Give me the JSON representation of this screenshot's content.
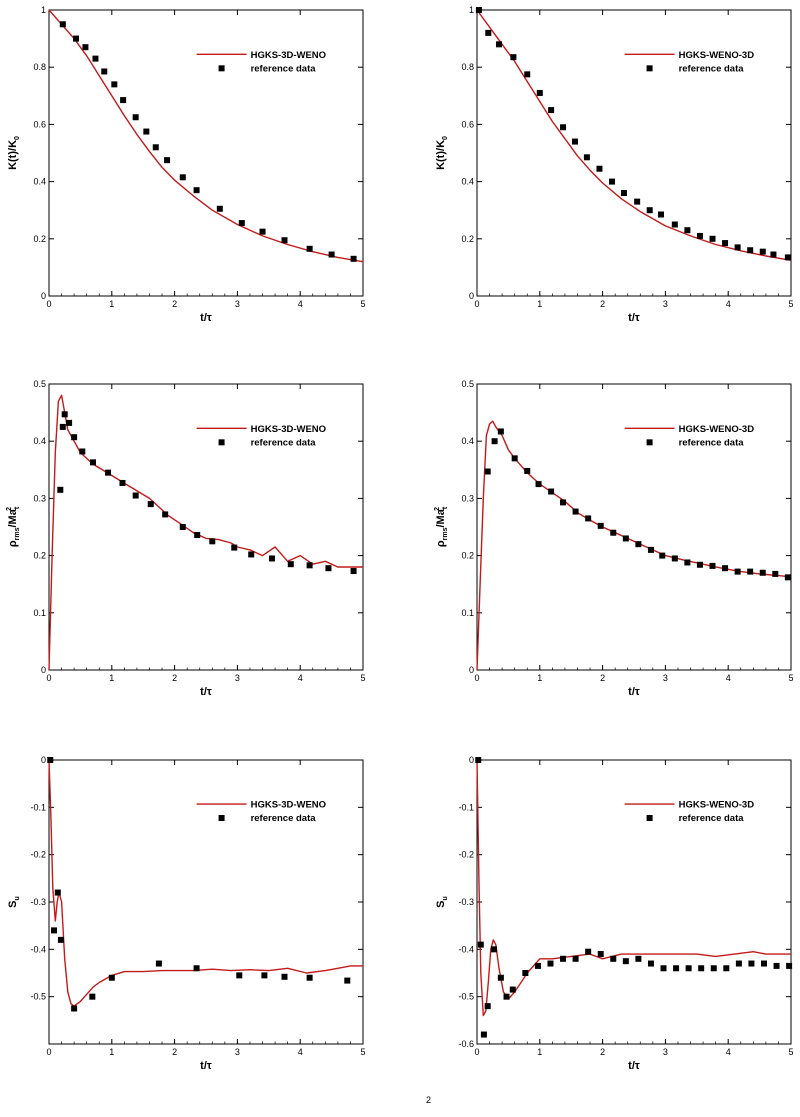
{
  "colors": {
    "simulation": "#c41a1a",
    "reference": "#000000"
  },
  "chart_data": [
    {
      "type": "line",
      "xlabel": "t/τ",
      "ylabel": {
        "main": "K(t)/K",
        "sub": "0",
        "suffix": ""
      },
      "xlim": [
        0,
        5
      ],
      "ylim": [
        0,
        1
      ],
      "xticks": [
        0,
        1,
        2,
        3,
        4,
        5
      ],
      "yticks": [
        0,
        0.2,
        0.4,
        0.6,
        0.8,
        1
      ],
      "ytick_labels": [
        "0",
        "0.2",
        "0.4",
        "0.6",
        "0.8",
        "1"
      ],
      "legend": {
        "position": "top-right",
        "line_label": "HGKS-3D-WENO",
        "marker_label": "reference data"
      },
      "series": [
        {
          "name": "HGKS-3D-WENO",
          "kind": "line",
          "x": [
            0,
            0.2,
            0.4,
            0.6,
            0.8,
            1.0,
            1.2,
            1.4,
            1.6,
            1.8,
            2.0,
            2.3,
            2.6,
            3.0,
            3.4,
            3.8,
            4.2,
            4.6,
            5.0
          ],
          "y": [
            1.0,
            0.95,
            0.9,
            0.84,
            0.77,
            0.7,
            0.63,
            0.565,
            0.505,
            0.45,
            0.405,
            0.35,
            0.3,
            0.25,
            0.21,
            0.18,
            0.155,
            0.135,
            0.12
          ]
        },
        {
          "name": "reference data",
          "kind": "marker",
          "x": [
            0.22,
            0.43,
            0.58,
            0.74,
            0.88,
            1.04,
            1.18,
            1.38,
            1.55,
            1.7,
            1.88,
            2.13,
            2.35,
            2.72,
            3.07,
            3.4,
            3.75,
            4.15,
            4.5,
            4.85
          ],
          "y": [
            0.95,
            0.9,
            0.87,
            0.83,
            0.785,
            0.74,
            0.685,
            0.625,
            0.575,
            0.52,
            0.475,
            0.415,
            0.37,
            0.305,
            0.255,
            0.225,
            0.195,
            0.165,
            0.145,
            0.13
          ]
        }
      ]
    },
    {
      "type": "line",
      "xlabel": "t/τ",
      "ylabel": {
        "main": "K(t)/K",
        "sub": "0",
        "suffix": ""
      },
      "xlim": [
        0,
        5
      ],
      "ylim": [
        0,
        1
      ],
      "xticks": [
        0,
        1,
        2,
        3,
        4,
        5
      ],
      "yticks": [
        0,
        0.2,
        0.4,
        0.6,
        0.8,
        1
      ],
      "ytick_labels": [
        "0",
        "0.2",
        "0.4",
        "0.6",
        "0.8",
        "1"
      ],
      "legend": {
        "position": "top-right",
        "line_label": "HGKS-WENO-3D",
        "marker_label": "reference data"
      },
      "series": [
        {
          "name": "HGKS-WENO-3D",
          "kind": "line",
          "x": [
            0,
            0.2,
            0.4,
            0.6,
            0.8,
            1.0,
            1.2,
            1.4,
            1.6,
            1.8,
            2.0,
            2.3,
            2.6,
            3.0,
            3.4,
            3.8,
            4.2,
            4.6,
            5.0
          ],
          "y": [
            1.0,
            0.94,
            0.88,
            0.82,
            0.75,
            0.68,
            0.61,
            0.55,
            0.49,
            0.44,
            0.395,
            0.34,
            0.295,
            0.245,
            0.21,
            0.18,
            0.158,
            0.14,
            0.125
          ]
        },
        {
          "name": "reference data",
          "kind": "marker",
          "x": [
            0.03,
            0.18,
            0.35,
            0.58,
            0.8,
            1.0,
            1.18,
            1.37,
            1.56,
            1.75,
            1.95,
            2.15,
            2.34,
            2.55,
            2.75,
            2.93,
            3.15,
            3.35,
            3.55,
            3.75,
            3.95,
            4.15,
            4.35,
            4.55,
            4.72,
            4.95
          ],
          "y": [
            1.0,
            0.92,
            0.88,
            0.835,
            0.775,
            0.71,
            0.65,
            0.59,
            0.54,
            0.485,
            0.445,
            0.4,
            0.36,
            0.33,
            0.3,
            0.285,
            0.25,
            0.23,
            0.21,
            0.2,
            0.185,
            0.17,
            0.16,
            0.155,
            0.145,
            0.135
          ]
        }
      ]
    },
    {
      "type": "line",
      "xlabel": "t/τ",
      "ylabel": {
        "main": "ρ",
        "sub": "rms",
        "suffix": "/Ma",
        "sub2": "t",
        "sup2": "2"
      },
      "xlim": [
        0,
        5
      ],
      "ylim": [
        0,
        0.5
      ],
      "xticks": [
        0,
        1,
        2,
        3,
        4,
        5
      ],
      "yticks": [
        0,
        0.1,
        0.2,
        0.3,
        0.4,
        0.5
      ],
      "ytick_labels": [
        "0",
        "0.1",
        "0.2",
        "0.3",
        "0.4",
        "0.5"
      ],
      "legend": {
        "position": "top-right",
        "line_label": "HGKS-3D-WENO",
        "marker_label": "reference data"
      },
      "series": [
        {
          "name": "HGKS-3D-WENO",
          "kind": "line",
          "x": [
            0,
            0.05,
            0.1,
            0.15,
            0.2,
            0.25,
            0.3,
            0.4,
            0.5,
            0.7,
            1.0,
            1.3,
            1.6,
            1.9,
            2.1,
            2.3,
            2.5,
            2.7,
            2.9,
            3.0,
            3.2,
            3.4,
            3.6,
            3.8,
            4.0,
            4.2,
            4.4,
            4.6,
            4.8,
            5.0
          ],
          "y": [
            0,
            0.2,
            0.38,
            0.47,
            0.48,
            0.45,
            0.42,
            0.4,
            0.38,
            0.36,
            0.34,
            0.32,
            0.3,
            0.27,
            0.255,
            0.24,
            0.23,
            0.228,
            0.222,
            0.215,
            0.21,
            0.2,
            0.215,
            0.19,
            0.2,
            0.185,
            0.19,
            0.18,
            0.18,
            0.18
          ]
        },
        {
          "name": "reference data",
          "kind": "marker",
          "x": [
            0.18,
            0.22,
            0.25,
            0.32,
            0.4,
            0.53,
            0.7,
            0.94,
            1.17,
            1.38,
            1.62,
            1.85,
            2.13,
            2.36,
            2.6,
            2.95,
            3.22,
            3.55,
            3.85,
            4.15,
            4.45,
            4.85
          ],
          "y": [
            0.315,
            0.425,
            0.447,
            0.432,
            0.407,
            0.382,
            0.363,
            0.345,
            0.327,
            0.305,
            0.29,
            0.272,
            0.25,
            0.236,
            0.225,
            0.214,
            0.202,
            0.195,
            0.185,
            0.183,
            0.178,
            0.173
          ]
        }
      ]
    },
    {
      "type": "line",
      "xlabel": "t/τ",
      "ylabel": {
        "main": "ρ",
        "sub": "rms",
        "suffix": "/Ma",
        "sub2": "t",
        "sup2": "2"
      },
      "xlim": [
        0,
        5
      ],
      "ylim": [
        0,
        0.5
      ],
      "xticks": [
        0,
        1,
        2,
        3,
        4,
        5
      ],
      "yticks": [
        0,
        0.1,
        0.2,
        0.3,
        0.4,
        0.5
      ],
      "ytick_labels": [
        "0",
        "0.1",
        "0.2",
        "0.3",
        "0.4",
        "0.5"
      ],
      "legend": {
        "position": "top-right",
        "line_label": "HGKS-WENO-3D",
        "marker_label": "reference data"
      },
      "series": [
        {
          "name": "HGKS-WENO-3D",
          "kind": "line",
          "x": [
            0,
            0.05,
            0.1,
            0.15,
            0.2,
            0.25,
            0.3,
            0.4,
            0.5,
            0.6,
            0.8,
            1.0,
            1.2,
            1.4,
            1.6,
            1.8,
            2.0,
            2.2,
            2.4,
            2.6,
            2.8,
            3.0,
            3.3,
            3.6,
            3.9,
            4.2,
            4.5,
            4.8,
            5.0
          ],
          "y": [
            0,
            0.15,
            0.3,
            0.41,
            0.43,
            0.435,
            0.425,
            0.41,
            0.385,
            0.37,
            0.345,
            0.325,
            0.31,
            0.295,
            0.275,
            0.262,
            0.25,
            0.24,
            0.23,
            0.22,
            0.21,
            0.2,
            0.192,
            0.185,
            0.178,
            0.172,
            0.168,
            0.165,
            0.163
          ]
        },
        {
          "name": "reference data",
          "kind": "marker",
          "x": [
            0.17,
            0.28,
            0.38,
            0.6,
            0.8,
            0.98,
            1.18,
            1.37,
            1.57,
            1.77,
            1.97,
            2.17,
            2.37,
            2.57,
            2.77,
            2.95,
            3.15,
            3.35,
            3.55,
            3.75,
            3.95,
            4.15,
            4.35,
            4.55,
            4.75,
            4.95
          ],
          "y": [
            0.347,
            0.4,
            0.417,
            0.37,
            0.348,
            0.325,
            0.312,
            0.293,
            0.277,
            0.265,
            0.252,
            0.24,
            0.23,
            0.22,
            0.21,
            0.2,
            0.195,
            0.188,
            0.184,
            0.182,
            0.178,
            0.172,
            0.172,
            0.17,
            0.168,
            0.162
          ]
        }
      ]
    },
    {
      "type": "line",
      "xlabel": "t/τ",
      "ylabel": {
        "main": "S",
        "sub": "u",
        "suffix": ""
      },
      "xlim": [
        0,
        5
      ],
      "ylim": [
        -0.6,
        0
      ],
      "xticks": [
        0,
        1,
        2,
        3,
        4,
        5
      ],
      "yticks": [
        -0.5,
        -0.4,
        -0.3,
        -0.2,
        -0.1,
        0
      ],
      "ytick_labels": [
        "-0.5",
        "-0.4",
        "-0.3",
        "-0.2",
        "-0.1",
        "0"
      ],
      "legend": {
        "position": "top-right",
        "line_label": "HGKS-3D-WENO",
        "marker_label": "reference data"
      },
      "series": [
        {
          "name": "HGKS-3D-WENO",
          "kind": "line",
          "x": [
            0,
            0.03,
            0.06,
            0.1,
            0.13,
            0.16,
            0.2,
            0.25,
            0.3,
            0.35,
            0.4,
            0.5,
            0.6,
            0.7,
            0.8,
            1.0,
            1.2,
            1.5,
            1.8,
            2.0,
            2.3,
            2.6,
            2.9,
            3.2,
            3.5,
            3.8,
            4.1,
            4.4,
            4.6,
            4.8,
            5.0
          ],
          "y": [
            0,
            -0.12,
            -0.27,
            -0.34,
            -0.3,
            -0.28,
            -0.3,
            -0.42,
            -0.49,
            -0.515,
            -0.52,
            -0.51,
            -0.495,
            -0.48,
            -0.47,
            -0.455,
            -0.447,
            -0.447,
            -0.445,
            -0.445,
            -0.445,
            -0.442,
            -0.445,
            -0.443,
            -0.445,
            -0.44,
            -0.45,
            -0.445,
            -0.44,
            -0.435,
            -0.435
          ]
        },
        {
          "name": "reference data",
          "kind": "marker",
          "x": [
            0.02,
            0.08,
            0.14,
            0.19,
            0.4,
            0.69,
            1.0,
            1.75,
            2.35,
            3.03,
            3.43,
            3.75,
            4.15,
            4.75
          ],
          "y": [
            0,
            -0.36,
            -0.28,
            -0.38,
            -0.525,
            -0.5,
            -0.46,
            -0.43,
            -0.44,
            -0.455,
            -0.455,
            -0.458,
            -0.46,
            -0.466
          ]
        }
      ]
    },
    {
      "type": "line",
      "xlabel": "t/τ",
      "ylabel": {
        "main": "S",
        "sub": "u",
        "suffix": ""
      },
      "xlim": [
        0,
        5
      ],
      "ylim": [
        -0.6,
        0
      ],
      "xticks": [
        0,
        1,
        2,
        3,
        4,
        5
      ],
      "yticks": [
        -0.6,
        -0.5,
        -0.4,
        -0.3,
        -0.2,
        -0.1,
        0
      ],
      "ytick_labels": [
        "-0.6",
        "-0.5",
        "-0.4",
        "-0.3",
        "-0.2",
        "-0.1",
        "0"
      ],
      "legend": {
        "position": "top-right",
        "line_label": "HGKS-WENO-3D",
        "marker_label": "reference data"
      },
      "series": [
        {
          "name": "HGKS-WENO-3D",
          "kind": "line",
          "x": [
            0,
            0.03,
            0.06,
            0.1,
            0.14,
            0.18,
            0.22,
            0.26,
            0.3,
            0.35,
            0.42,
            0.5,
            0.6,
            0.7,
            0.8,
            1.0,
            1.2,
            1.5,
            1.8,
            2.0,
            2.3,
            2.6,
            2.9,
            3.2,
            3.5,
            3.8,
            4.1,
            4.4,
            4.6,
            4.8,
            5.0
          ],
          "y": [
            0,
            -0.25,
            -0.45,
            -0.54,
            -0.53,
            -0.47,
            -0.4,
            -0.38,
            -0.39,
            -0.44,
            -0.49,
            -0.505,
            -0.49,
            -0.47,
            -0.45,
            -0.42,
            -0.42,
            -0.415,
            -0.41,
            -0.42,
            -0.41,
            -0.41,
            -0.41,
            -0.41,
            -0.41,
            -0.415,
            -0.41,
            -0.405,
            -0.41,
            -0.41,
            -0.41
          ]
        },
        {
          "name": "reference data",
          "kind": "marker",
          "x": [
            0.02,
            0.06,
            0.11,
            0.17,
            0.27,
            0.38,
            0.47,
            0.57,
            0.77,
            0.97,
            1.17,
            1.37,
            1.57,
            1.77,
            1.97,
            2.17,
            2.37,
            2.57,
            2.77,
            2.97,
            3.17,
            3.37,
            3.57,
            3.77,
            3.97,
            4.17,
            4.37,
            4.57,
            4.77,
            4.97
          ],
          "y": [
            0,
            -0.39,
            -0.58,
            -0.52,
            -0.4,
            -0.46,
            -0.5,
            -0.485,
            -0.45,
            -0.435,
            -0.43,
            -0.42,
            -0.42,
            -0.405,
            -0.41,
            -0.42,
            -0.425,
            -0.42,
            -0.43,
            -0.44,
            -0.44,
            -0.44,
            -0.44,
            -0.44,
            -0.44,
            -0.43,
            -0.43,
            -0.43,
            -0.435,
            -0.435
          ]
        }
      ]
    }
  ],
  "caption_fragment": "2"
}
